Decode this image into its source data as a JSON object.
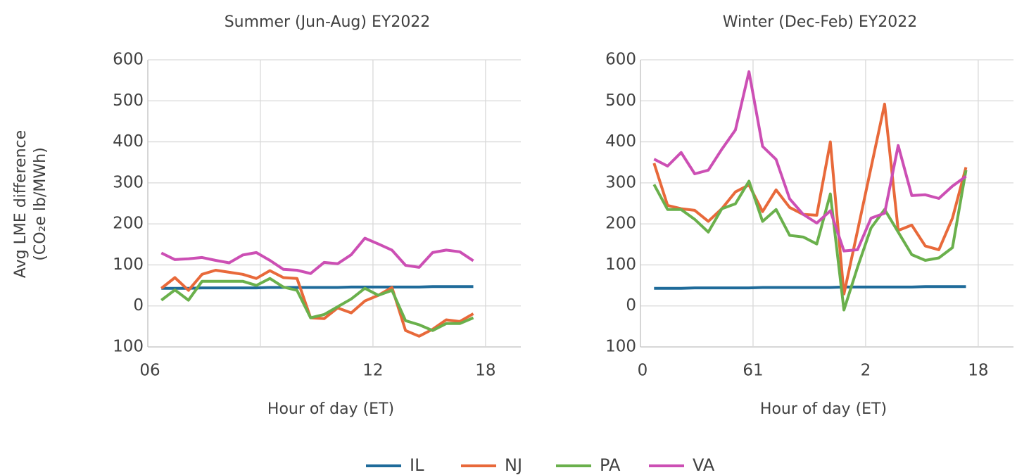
{
  "chart_data": [
    {
      "type": "line",
      "title": "Summer (Jun-Aug) EY2022",
      "xlabel": "Hour of day (ET)",
      "ylabel": [
        "Avg LME difference",
        "(CO₂e lb/MWh)"
      ],
      "x": [
        0,
        1,
        2,
        3,
        4,
        5,
        6,
        7,
        8,
        9,
        10,
        11,
        12,
        13,
        14,
        15,
        16,
        17,
        18,
        19,
        20,
        21,
        22,
        23
      ],
      "xlim": [
        -1,
        26.5
      ],
      "xticks": [
        {
          "value": -1,
          "label": "06"
        },
        {
          "value": 15.6,
          "label": "12"
        },
        {
          "value": 23.9,
          "label": "18"
        }
      ],
      "minor_xticks": [
        7.3
      ],
      "ylim": [
        -100,
        600
      ],
      "yticks": [
        {
          "value": -100,
          "label": "100"
        },
        0,
        100,
        200,
        300,
        400,
        500,
        600
      ],
      "grid": true,
      "series": [
        {
          "name": "IL",
          "color": "#1f6b9a",
          "values": [
            43,
            43,
            43,
            44,
            44,
            44,
            44,
            44,
            45,
            45,
            45,
            45,
            45,
            45,
            46,
            46,
            46,
            46,
            46,
            46,
            47,
            47,
            47,
            47
          ]
        },
        {
          "name": "NJ",
          "color": "#e8693a",
          "values": [
            43,
            69,
            38,
            77,
            87,
            82,
            77,
            67,
            86,
            69,
            67,
            -29,
            -31,
            -5,
            -17,
            12,
            26,
            45,
            -60,
            -74,
            -57,
            -34,
            -38,
            -19
          ]
        },
        {
          "name": "PA",
          "color": "#6ab04c",
          "values": [
            14,
            39,
            14,
            60,
            60,
            60,
            60,
            50,
            67,
            46,
            38,
            -29,
            -21,
            -2,
            17,
            43,
            26,
            38,
            -36,
            -46,
            -60,
            -43,
            -43,
            -29
          ]
        },
        {
          "name": "VA",
          "color": "#cc4fb4",
          "values": [
            129,
            113,
            115,
            118,
            111,
            105,
            124,
            130,
            111,
            89,
            87,
            79,
            106,
            103,
            125,
            165,
            151,
            136,
            99,
            94,
            130,
            136,
            132,
            110
          ]
        }
      ]
    },
    {
      "type": "line",
      "title": "Winter (Dec-Feb) EY2022",
      "xlabel": "Hour of day (ET)",
      "x": [
        0,
        1,
        2,
        3,
        4,
        5,
        6,
        7,
        8,
        9,
        10,
        11,
        12,
        13,
        14,
        15,
        16,
        17,
        18,
        19,
        20,
        21,
        22,
        23
      ],
      "xlim": [
        -1,
        26.5
      ],
      "xticks": [
        {
          "value": -1,
          "label": "0"
        },
        {
          "value": 7.3,
          "label": "61"
        },
        {
          "value": 15.6,
          "label": "2"
        },
        {
          "value": 23.9,
          "label": "18"
        }
      ],
      "ylim": [
        -100,
        600
      ],
      "yticks": [
        {
          "value": -100,
          "label": "100"
        },
        0,
        100,
        200,
        300,
        400,
        500,
        600
      ],
      "grid": true,
      "series": [
        {
          "name": "IL",
          "color": "#1f6b9a",
          "values": [
            43,
            43,
            43,
            44,
            44,
            44,
            44,
            44,
            45,
            45,
            45,
            45,
            45,
            45,
            46,
            46,
            46,
            46,
            46,
            46,
            47,
            47,
            47,
            47
          ]
        },
        {
          "name": "NJ",
          "color": "#e8693a",
          "values": [
            348,
            245,
            237,
            233,
            206,
            237,
            278,
            295,
            230,
            283,
            240,
            223,
            221,
            400,
            29,
            183,
            337,
            492,
            184,
            197,
            146,
            137,
            214,
            338
          ]
        },
        {
          "name": "PA",
          "color": "#6ab04c",
          "values": [
            296,
            235,
            235,
            211,
            180,
            237,
            249,
            304,
            206,
            235,
            172,
            168,
            151,
            273,
            -10,
            94,
            190,
            235,
            180,
            125,
            111,
            117,
            142,
            331
          ]
        },
        {
          "name": "VA",
          "color": "#cc4fb4",
          "values": [
            358,
            341,
            374,
            322,
            331,
            382,
            429,
            571,
            389,
            357,
            261,
            223,
            202,
            232,
            134,
            137,
            214,
            226,
            391,
            269,
            271,
            262,
            292,
            316
          ]
        }
      ]
    }
  ]
}
